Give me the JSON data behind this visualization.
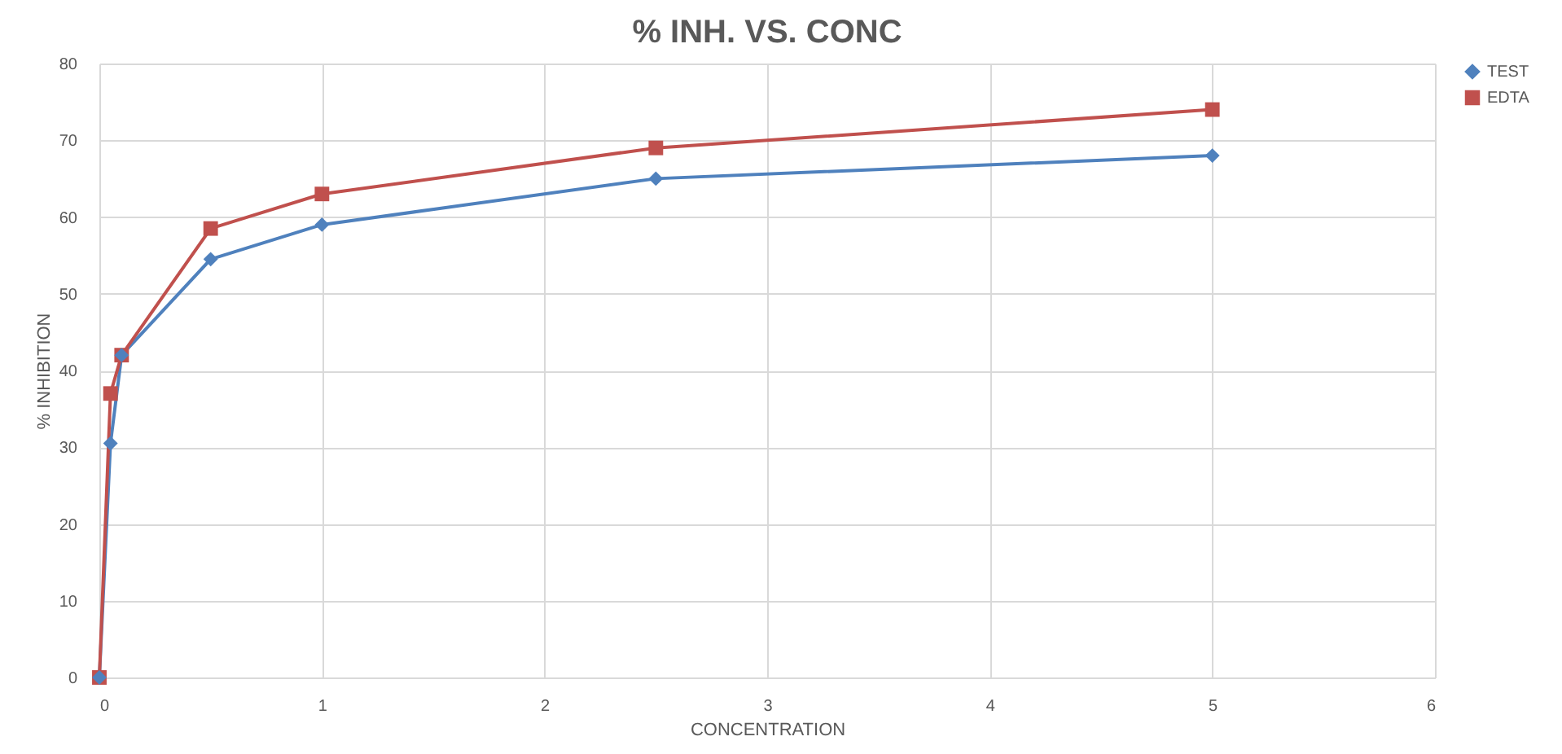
{
  "chart_data": {
    "type": "line",
    "title": "% INH. VS. CONC",
    "xlabel": "CONCENTRATION",
    "ylabel": "% INHIBITION",
    "x": [
      0,
      0.05,
      0.1,
      0.5,
      1,
      2.5,
      5
    ],
    "series": [
      {
        "name": "TEST",
        "color": "#4f81bd",
        "marker": "diamond",
        "values": [
          0,
          30.5,
          42,
          54.5,
          59,
          65,
          68
        ]
      },
      {
        "name": "EDTA",
        "color": "#c0504d",
        "marker": "square",
        "values": [
          0,
          37,
          42,
          58.5,
          63,
          69,
          74
        ]
      }
    ],
    "xlim": [
      0,
      6
    ],
    "xticks": [
      0,
      1,
      2,
      3,
      4,
      5,
      6
    ],
    "ylim": [
      0,
      80
    ],
    "yticks": [
      0,
      10,
      20,
      30,
      40,
      50,
      60,
      70,
      80
    ],
    "grid": true,
    "legend": "right",
    "line_style": "solid"
  }
}
